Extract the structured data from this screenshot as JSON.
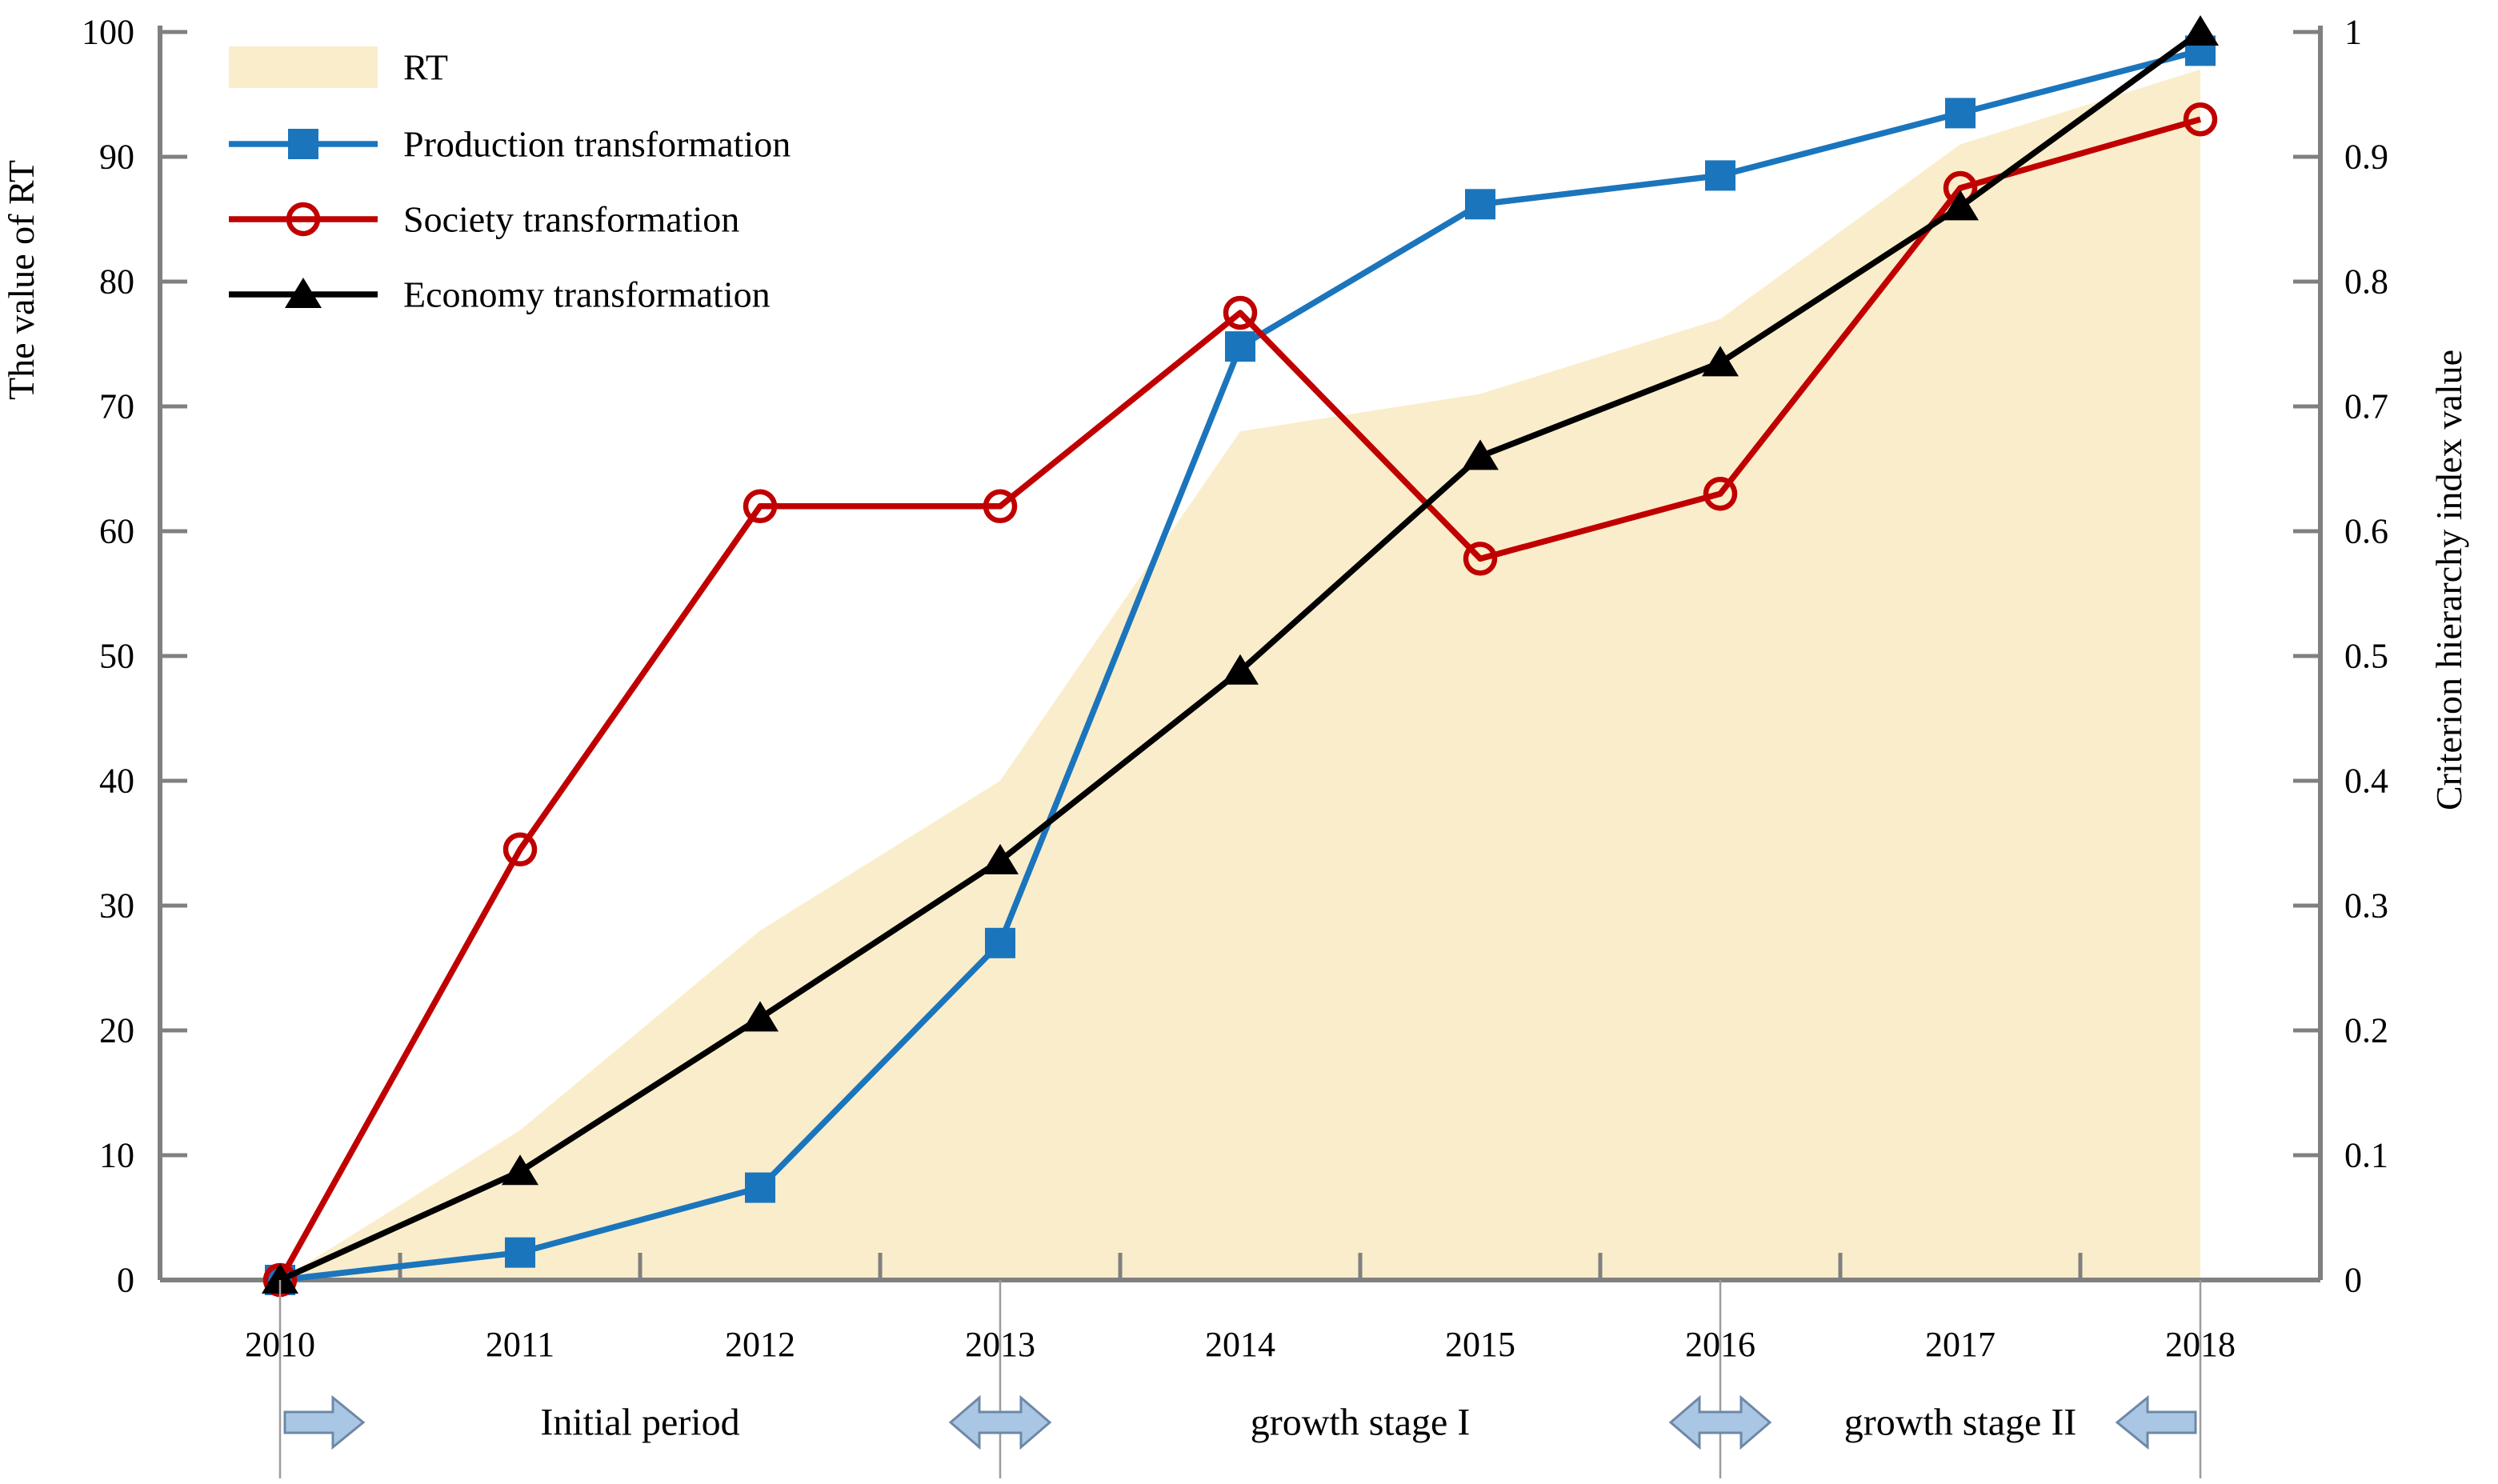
{
  "figure": {
    "type": "dual-axis combo chart",
    "background": "#FFFFFF"
  },
  "chart_data": {
    "type": "area",
    "subtype": "combo area + line, dual y-axis",
    "categories": [
      "2010",
      "2011",
      "2012",
      "2013",
      "2014",
      "2015",
      "2016",
      "2017",
      "2018"
    ],
    "series": [
      {
        "name": "RT",
        "type": "area",
        "color": "#FAEDCB",
        "marker": "none",
        "values": [
          0,
          12,
          28,
          40,
          68,
          71,
          77,
          91,
          97
        ]
      },
      {
        "name": "Production transformation",
        "type": "line",
        "color": "#1B75BC",
        "marker": "square",
        "values": [
          0,
          2.2,
          7.4,
          27,
          74.8,
          86.2,
          88.5,
          93.5,
          98.5
        ]
      },
      {
        "name": "Society transformation",
        "type": "line",
        "color": "#C00000",
        "marker": "open-circle",
        "values": [
          0,
          34.5,
          62,
          62,
          77.5,
          57.8,
          63,
          87.5,
          93
        ]
      },
      {
        "name": "Economy transformation",
        "type": "line",
        "color": "#000000",
        "marker": "triangle",
        "values": [
          0,
          8.7,
          21,
          33.6,
          48.8,
          66,
          73.5,
          86,
          100
        ]
      }
    ],
    "left_axis": {
      "title": "The value of RT",
      "min": 0,
      "max": 100,
      "step": 10,
      "tick_labels": [
        "0",
        "10",
        "20",
        "30",
        "40",
        "50",
        "60",
        "70",
        "80",
        "90",
        "100"
      ]
    },
    "right_axis": {
      "title": "Criterion hierarchy index value",
      "min": 0,
      "max": 1,
      "step": 0.1,
      "tick_labels": [
        "0",
        "0.1",
        "0.2",
        "0.3",
        "0.4",
        "0.5",
        "0.6",
        "0.7",
        "0.8",
        "0.9",
        "1"
      ]
    },
    "x_axis": {
      "tick_labels": [
        "2010",
        "2011",
        "2012",
        "2013",
        "2014",
        "2015",
        "2016",
        "2017",
        "2018"
      ]
    },
    "legend_position": "top-left",
    "grid": false
  },
  "annotations": {
    "dividers": [
      "2010",
      "2013",
      "2016",
      "2018"
    ],
    "stages": [
      {
        "label": "Initial period",
        "from": "2010",
        "to": "2013"
      },
      {
        "label": "growth stage I",
        "from": "2013",
        "to": "2016"
      },
      {
        "label": "growth stage II",
        "from": "2016",
        "to": "2018"
      }
    ],
    "arrows": [
      {
        "type": "right",
        "at": "2010"
      },
      {
        "type": "double",
        "at": "2013"
      },
      {
        "type": "double",
        "at": "2016"
      },
      {
        "type": "left",
        "at": "2018"
      }
    ],
    "arrow_fill": "#A9C7E5",
    "arrow_stroke": "#6E88A5"
  },
  "colors": {
    "axis": "#808080",
    "divider": "#9C9C9C",
    "text": "#000000",
    "background": "#FFFFFF"
  }
}
